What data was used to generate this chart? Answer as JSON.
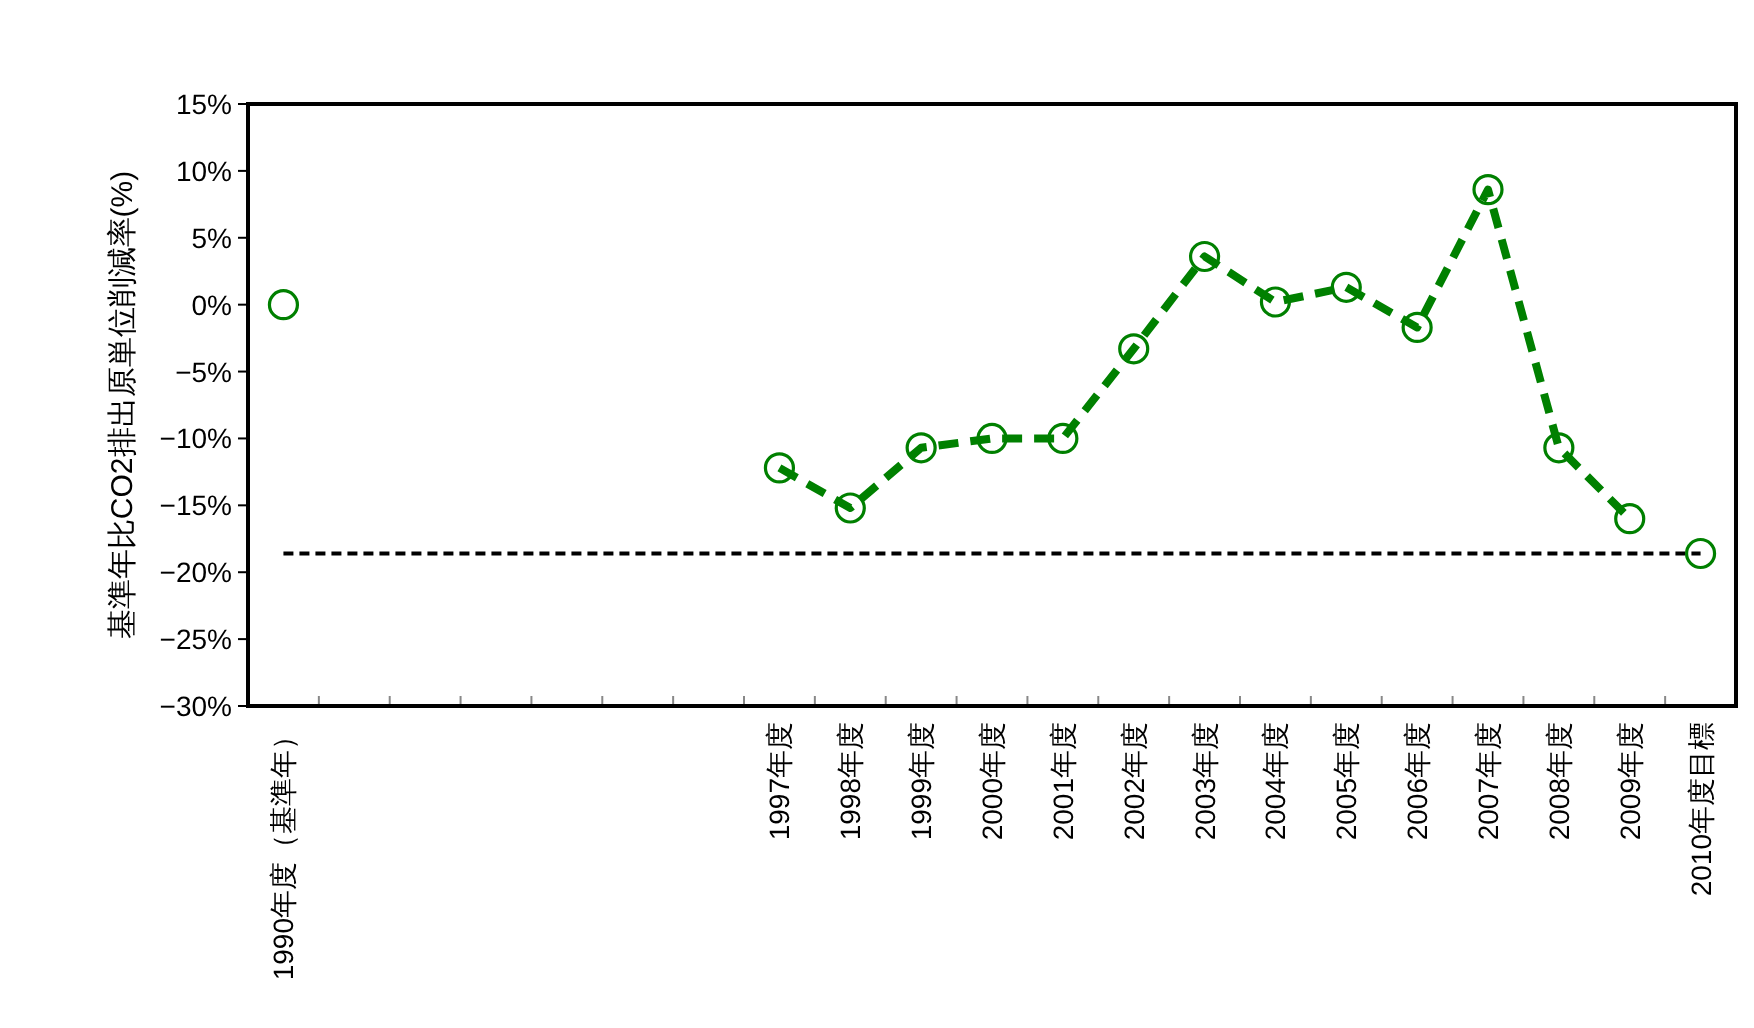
{
  "chart_data": {
    "type": "line",
    "ylabel": "基準年比CO2排出原単位削減率(%)",
    "categories": [
      "1990年度（基準年）",
      null,
      null,
      null,
      null,
      null,
      null,
      "1997年度",
      "1998年度",
      "1999年度",
      "2000年度",
      "2001年度",
      "2002年度",
      "2003年度",
      "2004年度",
      "2005年度",
      "2006年度",
      "2007年度",
      "2008年度",
      "2009年度",
      "2010年度目標"
    ],
    "ylim": [
      -30,
      15
    ],
    "yticks": [
      {
        "value": 15,
        "label": "15%"
      },
      {
        "value": 10,
        "label": "10%"
      },
      {
        "value": 5,
        "label": "5%"
      },
      {
        "value": 0,
        "label": "0%"
      },
      {
        "value": -5,
        "label": "−5%"
      },
      {
        "value": -10,
        "label": "−10%"
      },
      {
        "value": -15,
        "label": "−15%"
      },
      {
        "value": -20,
        "label": "−20%"
      },
      {
        "value": -25,
        "label": "−25%"
      },
      {
        "value": -30,
        "label": "−30%"
      }
    ],
    "marker": "circle",
    "series": [
      {
        "type": "scatter",
        "color": "#008000",
        "values": [
          0,
          null,
          null,
          null,
          null,
          null,
          null,
          null,
          null,
          null,
          null,
          null,
          null,
          null,
          null,
          null,
          null,
          null,
          null,
          null,
          -18.6
        ]
      },
      {
        "type": "line",
        "color": "#008000",
        "line_style": "dashed",
        "values": [
          null,
          null,
          null,
          null,
          null,
          null,
          null,
          -12.2,
          -15.2,
          -10.7,
          -10.0,
          -10.0,
          -3.3,
          3.6,
          0.2,
          1.3,
          -1.7,
          8.6,
          -10.7,
          -16.0,
          null
        ]
      }
    ],
    "ref_lines": [
      {
        "axis": "y",
        "value": -18.6,
        "color": "#000000",
        "line_style": "dashed"
      }
    ]
  }
}
